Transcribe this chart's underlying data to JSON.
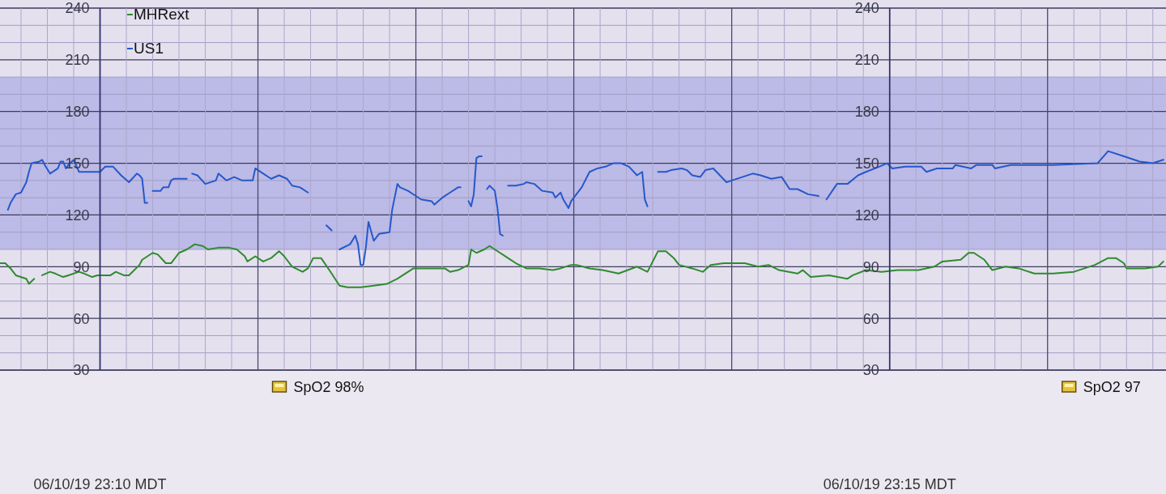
{
  "chart_data": {
    "type": "line",
    "series": [
      {
        "name": "MHRext",
        "color": "#2e8b2e",
        "x": [
          "--06-10T23:09:22",
          "--06-10T23:09:24",
          "--06-10T23:09:26",
          "--06-10T23:09:28",
          "--06-10T23:09:32",
          "--06-10T23:09:33",
          "--06-10T23:09:35",
          "--06-10T23:09:36",
          "--06-10T23:09:38",
          "--06-10T23:09:41",
          "--06-10T23:09:43",
          "--06-10T23:09:46",
          "--06-10T23:09:48",
          "--06-10T23:09:52",
          "--06-10T23:09:54",
          "--06-10T23:09:57",
          "--06-10T23:09:59",
          "--06-10T23:10:04",
          "--06-10T23:10:06",
          "--06-10T23:10:09",
          "--06-10T23:10:11",
          "--06-10T23:10:15",
          "--06-10T23:10:16",
          "--06-10T23:10:20",
          "--06-10T23:10:22",
          "--06-10T23:10:25",
          "--06-10T23:10:27",
          "--06-10T23:10:30",
          "--06-10T23:10:33",
          "--06-10T23:10:36",
          "--06-10T23:10:39",
          "--06-10T23:10:41",
          "--06-10T23:10:45",
          "--06-10T23:10:49",
          "--06-10T23:10:52",
          "--06-10T23:10:55",
          "--06-10T23:10:56",
          "--06-10T23:10:59",
          "--06-10T23:11:02",
          "--06-10T23:11:05",
          "--06-10T23:11:08",
          "--06-10T23:11:10",
          "--06-10T23:11:13",
          "--06-10T23:11:17",
          "--06-10T23:11:19",
          "--06-10T23:11:21",
          "--06-10T23:11:24",
          "--06-10T23:11:28",
          "--06-10T23:11:31",
          "--06-10T23:11:34",
          "--06-10T23:11:39",
          "--06-10T23:11:44",
          "--06-10T23:11:49",
          "--06-10T23:11:53",
          "--06-10T23:11:58",
          "--06-10T23:11:59",
          "--06-10T23:12:11",
          "--06-10T23:12:13",
          "--06-10T23:12:16",
          "--06-10T23:12:20",
          "--06-10T23:12:21",
          "--06-10T23:12:23",
          "--06-10T23:12:26",
          "--06-10T23:12:28",
          "--06-10T23:12:30",
          "--06-10T23:12:35",
          "--06-10T23:12:38",
          "--06-10T23:12:42",
          "--06-10T23:12:47",
          "--06-10T23:12:52",
          "--06-10T23:12:55",
          "--06-10T23:12:59",
          "--06-10T23:13:01",
          "--06-10T23:13:06",
          "--06-10T23:13:11",
          "--06-10T23:13:17",
          "--06-10T23:13:24",
          "--06-10T23:13:28",
          "--06-10T23:13:32",
          "--06-10T23:13:35",
          "--06-10T23:13:38",
          "--06-10T23:13:40",
          "--06-10T23:13:45",
          "--06-10T23:13:49",
          "--06-10T23:13:52",
          "--06-10T23:13:57",
          "--06-10T23:14:00",
          "--06-10T23:14:05",
          "--06-10T23:14:10",
          "--06-10T23:14:14",
          "--06-10T23:14:18",
          "--06-10T23:14:25",
          "--06-10T23:14:27",
          "--06-10T23:14:30",
          "--06-10T23:14:37",
          "--06-10T23:14:44",
          "--06-10T23:14:46",
          "--06-10T23:14:51",
          "--06-10T23:14:57",
          "--06-10T23:15:03",
          "--06-10T23:15:11",
          "--06-10T23:15:17",
          "--06-10T23:15:20",
          "--06-10T23:15:27",
          "--06-10T23:15:30",
          "--06-10T23:15:32",
          "--06-10T23:15:36",
          "--06-10T23:15:39",
          "--06-10T23:15:44",
          "--06-10T23:15:49",
          "--06-10T23:15:55",
          "--06-10T23:16:02",
          "--06-10T23:16:10",
          "--06-10T23:16:14",
          "--06-10T23:16:18",
          "--06-10T23:16:23",
          "--06-10T23:16:26",
          "--06-10T23:16:29",
          "--06-10T23:16:30",
          "--06-10T23:16:37",
          "--06-10T23:16:42",
          "--06-10T23:16:44"
        ],
        "values": [
          92,
          92,
          89,
          85,
          83,
          80,
          83,
          null,
          85,
          87,
          86,
          84,
          85,
          87,
          86,
          84,
          85,
          85,
          87,
          85,
          85,
          91,
          94,
          98,
          97,
          92,
          92,
          98,
          100,
          103,
          102,
          100,
          101,
          101,
          100,
          96,
          93,
          96,
          93,
          95,
          99,
          96,
          90,
          87,
          89,
          95,
          95,
          86,
          79,
          78,
          78,
          79,
          80,
          83,
          88,
          89,
          89,
          87,
          88,
          91,
          100,
          98,
          100,
          102,
          100,
          95,
          92,
          89,
          89,
          88,
          89,
          91,
          91,
          89,
          88,
          86,
          90,
          87,
          99,
          99,
          95,
          91,
          89,
          87,
          91,
          92,
          92,
          92,
          90,
          91,
          88,
          86,
          88,
          84,
          85,
          83,
          85,
          88,
          87,
          88,
          88,
          90,
          93,
          94,
          98,
          98,
          94,
          88,
          90,
          89,
          86,
          86,
          87,
          89,
          91,
          95,
          95,
          92,
          89,
          89,
          90,
          93
        ]
      },
      {
        "name": "US1",
        "color": "#2558cc",
        "x": [
          "--06-10T23:09:25",
          "--06-10T23:09:26",
          "--06-10T23:09:28",
          "--06-10T23:09:30",
          "--06-10T23:09:32",
          "--06-10T23:09:33",
          "--06-10T23:09:34",
          "--06-10T23:09:37",
          "--06-10T23:09:38",
          "--06-10T23:09:39",
          "--06-10T23:09:41",
          "--06-10T23:09:43",
          "--06-10T23:09:44",
          "--06-10T23:09:45",
          "--06-10T23:09:46",
          "--06-10T23:09:47",
          "--06-10T23:09:48",
          "--06-10T23:09:50",
          "--06-10T23:09:52",
          "--06-10T23:10:00",
          "--06-10T23:10:02",
          "--06-10T23:10:05",
          "--06-10T23:10:08",
          "--06-10T23:10:11",
          "--06-10T23:10:14",
          "--06-10T23:10:15",
          "--06-10T23:10:16",
          "--06-10T23:10:17",
          "--06-10T23:10:18",
          "--06-10T23:10:19",
          "--06-10T23:10:20",
          "--06-10T23:10:23",
          "--06-10T23:10:24",
          "--06-10T23:10:26",
          "--06-10T23:10:27",
          "--06-10T23:10:28",
          "--06-10T23:10:33",
          "--06-10T23:10:34",
          "--06-10T23:10:35",
          "--06-10T23:10:37",
          "--06-10T23:10:40",
          "--06-10T23:10:44",
          "--06-10T23:10:45",
          "--06-10T23:10:48",
          "--06-10T23:10:51",
          "--06-10T23:10:54",
          "--06-10T23:10:58",
          "--06-10T23:10:59",
          "--06-10T23:11:02",
          "--06-10T23:11:05",
          "--06-10T23:11:08",
          "--06-10T23:11:11",
          "--06-10T23:11:13",
          "--06-10T23:11:16",
          "--06-10T23:11:19",
          "--06-10T23:11:22",
          "--06-10T23:11:26",
          "--06-10T23:11:28",
          "--06-10T23:11:29",
          "--06-10T23:11:31",
          "--06-10T23:11:35",
          "--06-10T23:11:37",
          "--06-10T23:11:38",
          "--06-10T23:11:39",
          "--06-10T23:11:40",
          "--06-10T23:11:41",
          "--06-10T23:11:42",
          "--06-10T23:11:44",
          "--06-10T23:11:46",
          "--06-10T23:11:50",
          "--06-10T23:11:51",
          "--06-10T23:11:53",
          "--06-10T23:11:54",
          "--06-10T23:11:57",
          "--06-10T23:12:00",
          "--06-10T23:12:02",
          "--06-10T23:12:06",
          "--06-10T23:12:07",
          "--06-10T23:12:10",
          "--06-10T23:12:13",
          "--06-10T23:12:16",
          "--06-10T23:12:17",
          "--06-10T23:12:18",
          "--06-10T23:12:20",
          "--06-10T23:12:21",
          "--06-10T23:12:22",
          "--06-10T23:12:23",
          "--06-10T23:12:24",
          "--06-10T23:12:25",
          "--06-10T23:12:26",
          "--06-10T23:12:27",
          "--06-10T23:12:28",
          "--06-10T23:12:30",
          "--06-10T23:12:31",
          "--06-10T23:12:32",
          "--06-10T23:12:33",
          "--06-10T23:12:34",
          "--06-10T23:12:35",
          "--06-10T23:12:38",
          "--06-10T23:12:41",
          "--06-10T23:12:42",
          "--06-10T23:12:45",
          "--06-10T23:12:48",
          "--06-10T23:12:52",
          "--06-10T23:12:53",
          "--06-10T23:12:55",
          "--06-10T23:12:56",
          "--06-10T23:12:58",
          "--06-10T23:12:59",
          "--06-10T23:13:03",
          "--06-10T23:13:06",
          "--06-10T23:13:09",
          "--06-10T23:13:12",
          "--06-10T23:13:15",
          "--06-10T23:13:18",
          "--06-10T23:13:21",
          "--06-10T23:13:24",
          "--06-10T23:13:26",
          "--06-10T23:13:27",
          "--06-10T23:13:28",
          "--06-10T23:13:30",
          "--06-10T23:13:32",
          "--06-10T23:13:35",
          "--06-10T23:13:37",
          "--06-10T23:13:41",
          "--06-10T23:13:43",
          "--06-10T23:13:45",
          "--06-10T23:13:48",
          "--06-10T23:13:50",
          "--06-10T23:13:53",
          "--06-10T23:13:58",
          "--06-10T23:14:00",
          "--06-10T23:14:08",
          "--06-10T23:14:11",
          "--06-10T23:14:15",
          "--06-10T23:14:19",
          "--06-10T23:14:22",
          "--06-10T23:14:25",
          "--06-10T23:14:29",
          "--06-10T23:14:33",
          "--06-10T23:14:34",
          "--06-10T23:14:36",
          "--06-10T23:14:40",
          "--06-10T23:14:44",
          "--06-10T23:14:48",
          "--06-10T23:14:51",
          "--06-10T23:14:56",
          "--06-10T23:14:59",
          "--06-10T23:15:01",
          "--06-10T23:15:06",
          "--06-10T23:15:12",
          "--06-10T23:15:14",
          "--06-10T23:15:18",
          "--06-10T23:15:24",
          "--06-10T23:15:25",
          "--06-10T23:15:31",
          "--06-10T23:15:33",
          "--06-10T23:15:39",
          "--06-10T23:15:40",
          "--06-10T23:15:46",
          "--06-10T23:16:02",
          "--06-10T23:16:19",
          "--06-10T23:16:23",
          "--06-10T23:16:29",
          "--06-10T23:16:35",
          "--06-10T23:16:40",
          "--06-10T23:16:44"
        ],
        "values": [
          123,
          127,
          132,
          133,
          139,
          145,
          150,
          151,
          152,
          149,
          144,
          146,
          147,
          151,
          151,
          147,
          149,
          152,
          145,
          145,
          148,
          148,
          143,
          139,
          144,
          143,
          141,
          127,
          127,
          null,
          134,
          134,
          136,
          136,
          140,
          141,
          141,
          null,
          144,
          143,
          138,
          140,
          144,
          140,
          142,
          140,
          140,
          147,
          144,
          141,
          143,
          141,
          137,
          136,
          133,
          null,
          114,
          111,
          null,
          100,
          103,
          108,
          103,
          91,
          91,
          101,
          116,
          105,
          109,
          110,
          123,
          138,
          136,
          134,
          131,
          129,
          128,
          126,
          130,
          133,
          136,
          136,
          null,
          128,
          125,
          132,
          153,
          154,
          154,
          null,
          135,
          137,
          134,
          124,
          109,
          108,
          null,
          137,
          137,
          138,
          139,
          138,
          134,
          133,
          130,
          133,
          129,
          124,
          128,
          136,
          145,
          147,
          148,
          150,
          150,
          148,
          143,
          145,
          129,
          125,
          null,
          145,
          145,
          146,
          147,
          146,
          143,
          142,
          146,
          147,
          139,
          140,
          144,
          143,
          141,
          142,
          135,
          135,
          132,
          131,
          null,
          129,
          138,
          138,
          143,
          145,
          148,
          150,
          147,
          148,
          148,
          145,
          147,
          147,
          149,
          147,
          149,
          149,
          147,
          149,
          149,
          150,
          157,
          154,
          151,
          150,
          152
        ]
      }
    ],
    "xlim": [
      "--06-10T23:09:22",
      "--06-10T23:16:45"
    ],
    "xticks": [
      {
        "value": "--06-10T23:09:30",
        "label": null
      },
      {
        "value": "--06-10T23:09:40",
        "label": null
      },
      {
        "value": "--06-10T23:09:50",
        "label": null
      },
      {
        "value": "--06-10T23:10:00",
        "label": "06/10/19 23:10 MDT"
      },
      {
        "value": "--06-10T23:10:10",
        "label": null
      },
      {
        "value": "--06-10T23:10:20",
        "label": null
      },
      {
        "value": "--06-10T23:10:30",
        "label": null
      },
      {
        "value": "--06-10T23:10:40",
        "label": null
      },
      {
        "value": "--06-10T23:10:50",
        "label": null
      },
      {
        "value": "--06-10T23:11:00",
        "label": null
      },
      {
        "value": "--06-10T23:11:10",
        "label": null
      },
      {
        "value": "--06-10T23:11:20",
        "label": null
      },
      {
        "value": "--06-10T23:11:30",
        "label": null
      },
      {
        "value": "--06-10T23:11:40",
        "label": null
      },
      {
        "value": "--06-10T23:11:50",
        "label": null
      },
      {
        "value": "--06-10T23:12:00",
        "label": null
      },
      {
        "value": "--06-10T23:12:10",
        "label": null
      },
      {
        "value": "--06-10T23:12:20",
        "label": null
      },
      {
        "value": "--06-10T23:12:30",
        "label": null
      },
      {
        "value": "--06-10T23:12:40",
        "label": null
      },
      {
        "value": "--06-10T23:12:50",
        "label": null
      },
      {
        "value": "--06-10T23:13:00",
        "label": null
      },
      {
        "value": "--06-10T23:13:10",
        "label": null
      },
      {
        "value": "--06-10T23:13:20",
        "label": null
      },
      {
        "value": "--06-10T23:13:30",
        "label": null
      },
      {
        "value": "--06-10T23:13:40",
        "label": null
      },
      {
        "value": "--06-10T23:13:50",
        "label": null
      },
      {
        "value": "--06-10T23:14:00",
        "label": null
      },
      {
        "value": "--06-10T23:14:10",
        "label": null
      },
      {
        "value": "--06-10T23:14:20",
        "label": null
      },
      {
        "value": "--06-10T23:14:30",
        "label": null
      },
      {
        "value": "--06-10T23:14:40",
        "label": null
      },
      {
        "value": "--06-10T23:14:50",
        "label": null
      },
      {
        "value": "--06-10T23:15:00",
        "label": "06/10/19 23:15 MDT"
      },
      {
        "value": "--06-10T23:15:10",
        "label": null
      },
      {
        "value": "--06-10T23:15:20",
        "label": null
      },
      {
        "value": "--06-10T23:15:30",
        "label": null
      },
      {
        "value": "--06-10T23:15:40",
        "label": null
      },
      {
        "value": "--06-10T23:15:50",
        "label": null
      },
      {
        "value": "--06-10T23:16:00",
        "label": null
      },
      {
        "value": "--06-10T23:16:10",
        "label": null
      },
      {
        "value": "--06-10T23:16:20",
        "label": null
      },
      {
        "value": "--06-10T23:16:30",
        "label": null
      },
      {
        "value": "--06-10T23:16:40",
        "label": null
      }
    ],
    "ylim": [
      30,
      240
    ],
    "yticks": [
      30,
      {
        "value": 40,
        "label": null
      },
      {
        "value": 50,
        "label": null
      },
      60,
      {
        "value": 70,
        "label": null
      },
      {
        "value": 80,
        "label": null
      },
      90,
      {
        "value": 100,
        "label": null
      },
      {
        "value": 110,
        "label": null
      },
      120,
      {
        "value": 130,
        "label": null
      },
      {
        "value": 140,
        "label": null
      },
      150,
      {
        "value": 160,
        "label": null
      },
      {
        "value": 170,
        "label": null
      },
      180,
      {
        "value": 190,
        "label": null
      },
      {
        "value": 200,
        "label": null
      },
      210,
      {
        "value": 220,
        "label": null
      },
      {
        "value": 230,
        "label": null
      },
      240
    ],
    "y2lim": [
      30,
      240
    ],
    "y2ticks": [
      30,
      60,
      90,
      120,
      150,
      180,
      210,
      240
    ],
    "grid": true,
    "legend": "top left",
    "bands": [
      {
        "axis": "y",
        "from": 100,
        "to": 200,
        "color": "#bcbae6"
      }
    ],
    "annotations": [
      "SpO2 98%",
      "SpO2 97"
    ]
  }
}
